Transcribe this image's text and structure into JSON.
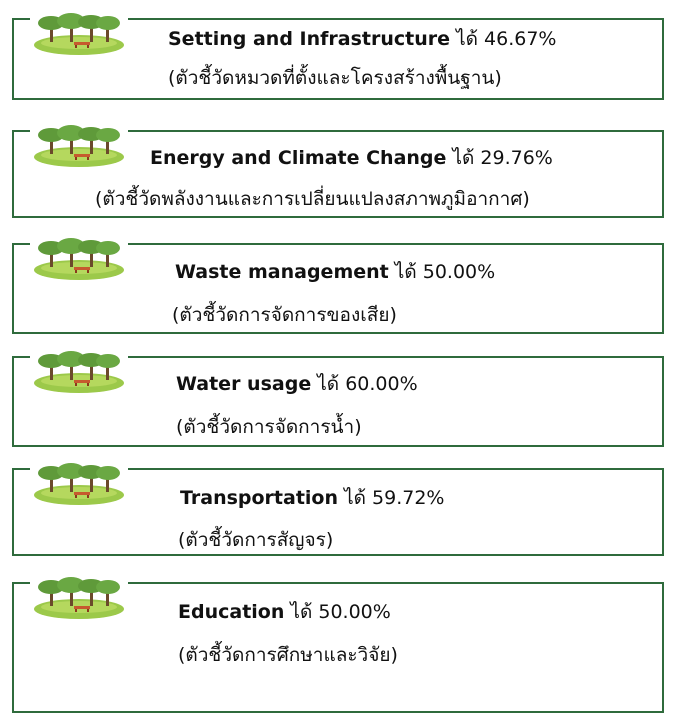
{
  "items": [
    {
      "title": "Setting and Infrastructure",
      "got": "ได้",
      "score": "46.67%",
      "subtitle": "(ตัวชี้วัดหมวดที่ตั้งและโครงสร้างพื้นฐาน)"
    },
    {
      "title": "Energy and Climate Change",
      "got": "ได้",
      "score": "29.76%",
      "subtitle": "(ตัวชี้วัดพลังงานและการเปลี่ยนแปลงสภาพภูมิอากาศ)"
    },
    {
      "title": "Waste management",
      "got": "ได้",
      "score": "50.00%",
      "subtitle": "(ตัวชี้วัดการจัดการของเสีย)"
    },
    {
      "title": "Water usage",
      "got": "ได้",
      "score": "60.00%",
      "subtitle": "(ตัวชี้วัดการจัดการน้ำ)"
    },
    {
      "title": "Transportation",
      "got": "ได้",
      "score": "59.72%",
      "subtitle": "(ตัวชี้วัดการสัญจร)"
    },
    {
      "title": "Education",
      "got": "ได้",
      "score": "50.00%",
      "subtitle": "(ตัวชี้วัดการศึกษาและวิจัย)"
    }
  ]
}
